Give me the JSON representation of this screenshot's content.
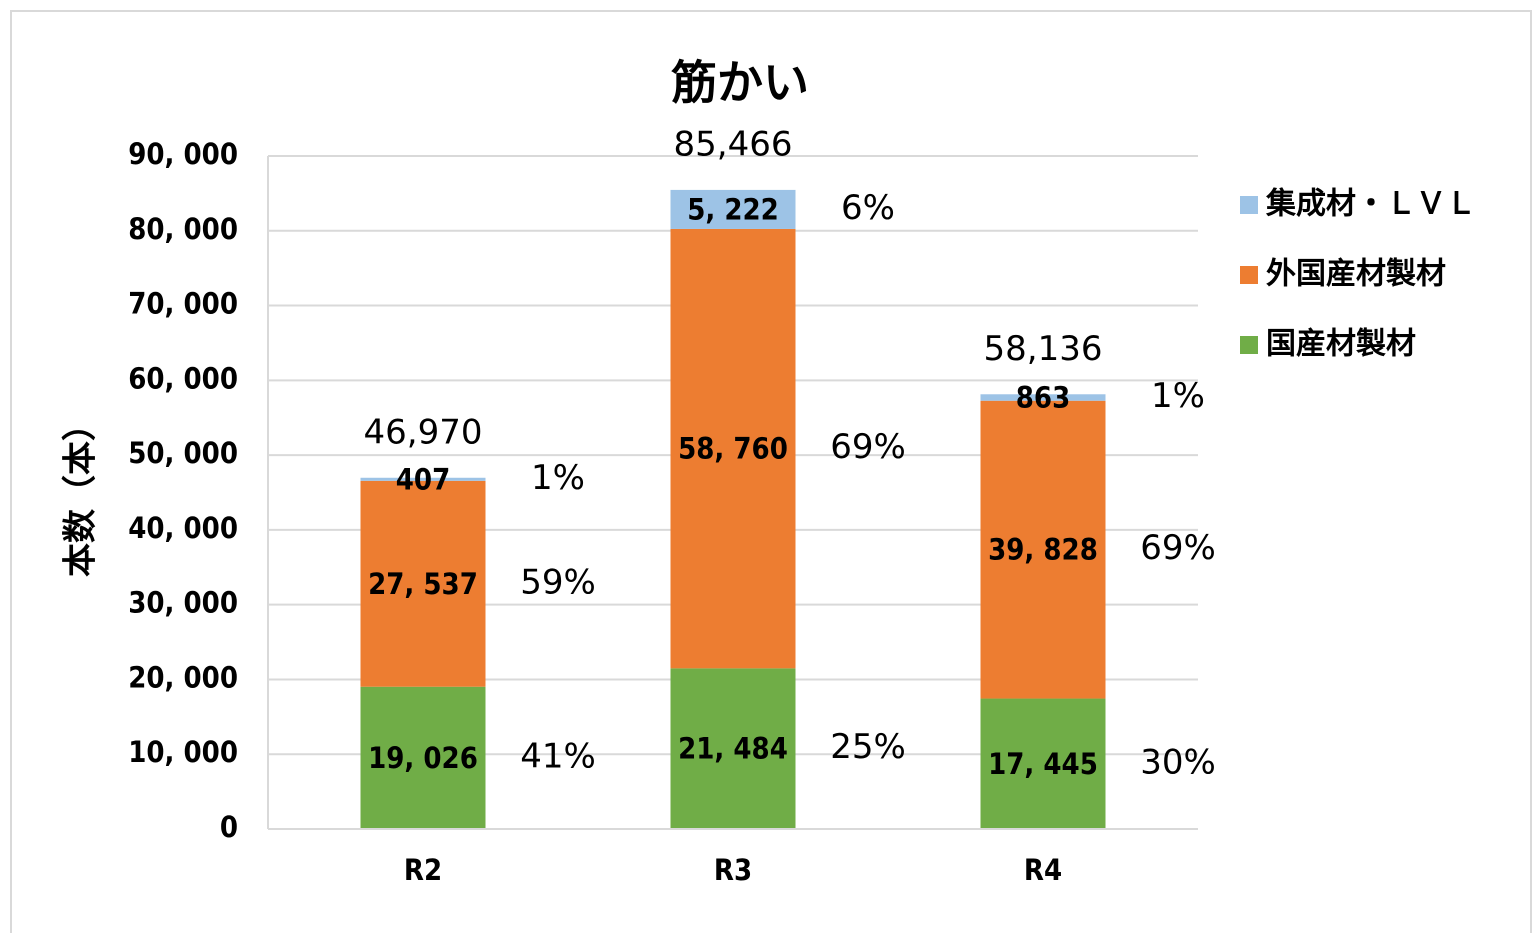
{
  "chart_data": {
    "type": "stacked_bar",
    "title": "筋かい",
    "y_label": "本数（本）",
    "categories": [
      "R2",
      "R3",
      "R4"
    ],
    "series": [
      {
        "name": "国産材製材",
        "color": "#70ad47",
        "values": [
          19026,
          21484,
          17445
        ],
        "value_labels": [
          "19, 026",
          "21, 484",
          "17, 445"
        ],
        "shares": [
          41,
          25,
          30
        ],
        "share_labels": [
          "41%",
          "25%",
          "30%"
        ]
      },
      {
        "name": "外国産材製材",
        "color": "#ed7d31",
        "values": [
          27537,
          58760,
          39828
        ],
        "value_labels": [
          "27, 537",
          "58, 760",
          "39, 828"
        ],
        "shares": [
          59,
          69,
          69
        ],
        "share_labels": [
          "59%",
          "69%",
          "69%"
        ]
      },
      {
        "name": "集成材・ＬＶＬ",
        "color": "#9dc3e6",
        "values": [
          407,
          5222,
          863
        ],
        "value_labels": [
          "407",
          "5, 222",
          "863"
        ],
        "shares": [
          1,
          6,
          1
        ],
        "share_labels": [
          "1%",
          "6%",
          "1%"
        ]
      }
    ],
    "totals": [
      46970,
      85466,
      58136
    ],
    "total_labels": [
      "46,970",
      "85,466",
      "58,136"
    ],
    "ylim": [
      0,
      90000
    ],
    "yticks": [
      0,
      {
        "value": 10000,
        "label": "10, 000"
      },
      {
        "value": 20000,
        "label": "20, 000"
      },
      {
        "value": 30000,
        "label": "30, 000"
      },
      {
        "value": 40000,
        "label": "40, 000"
      },
      {
        "value": 50000,
        "label": "50, 000"
      },
      {
        "value": 60000,
        "label": "60, 000"
      },
      {
        "value": 70000,
        "label": "70, 000"
      },
      {
        "value": 80000,
        "label": "80, 000"
      },
      {
        "value": 90000,
        "label": "90, 000"
      }
    ],
    "grid": true,
    "legend": "right"
  }
}
